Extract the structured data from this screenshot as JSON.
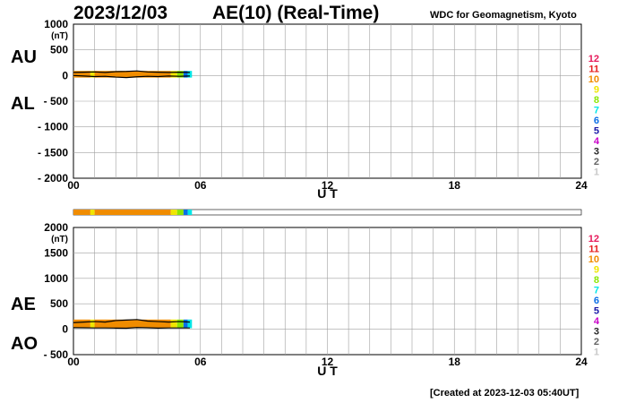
{
  "header": {
    "date": "2023/12/03",
    "title": "AE(10) (Real-Time)",
    "credit": "WDC for Geomagnetism, Kyoto"
  },
  "footer": "[Created at 2023-12-03 05:40UT]",
  "legend": {
    "labels": [
      "12",
      "11",
      "10",
      "9",
      "8",
      "7",
      "6",
      "5",
      "4",
      "3",
      "2",
      "1"
    ],
    "colors": [
      "#e6195a",
      "#e62020",
      "#f08c00",
      "#f0e600",
      "#8ce600",
      "#00e6e6",
      "#0a6ee6",
      "#1a1aa8",
      "#c800c8",
      "#282828",
      "#646464",
      "#c8c8c8"
    ]
  },
  "chart_data": [
    {
      "type": "line",
      "panel": "AU/AL",
      "series_labels": [
        "AU",
        "AL"
      ],
      "units": "(nT)",
      "xlabel": "U T",
      "xlim": [
        0,
        24
      ],
      "x_ticks": [
        "00",
        "06",
        "12",
        "18",
        "24"
      ],
      "ylim": [
        -2000,
        1000
      ],
      "y_ticks": [
        "1000",
        "500",
        "0",
        "- 500",
        "- 1000",
        "- 1500",
        "- 2000"
      ],
      "grid": true,
      "series": [
        {
          "name": "AU",
          "x": [
            0,
            0.5,
            1,
            1.5,
            2,
            2.5,
            3,
            3.5,
            4,
            4.5,
            5,
            5.5
          ],
          "y": [
            60,
            65,
            70,
            60,
            75,
            80,
            90,
            70,
            65,
            60,
            65,
            60
          ]
        },
        {
          "name": "AL",
          "x": [
            0,
            0.5,
            1,
            1.5,
            2,
            2.5,
            3,
            3.5,
            4,
            4.5,
            5,
            5.5
          ],
          "y": [
            0,
            -10,
            -20,
            -15,
            -30,
            -40,
            -25,
            -15,
            -20,
            -10,
            -15,
            -10
          ]
        }
      ]
    },
    {
      "type": "line",
      "panel": "AE/AO",
      "series_labels": [
        "AE",
        "AO"
      ],
      "units": "(nT)",
      "xlabel": "U T",
      "xlim": [
        0,
        24
      ],
      "x_ticks": [
        "00",
        "06",
        "12",
        "18",
        "24"
      ],
      "ylim": [
        -500,
        2000
      ],
      "y_ticks": [
        "2000",
        "1500",
        "1000",
        "500",
        "0",
        "- 500"
      ],
      "grid": true,
      "series": [
        {
          "name": "AE",
          "x": [
            0,
            0.5,
            1,
            1.5,
            2,
            2.5,
            3,
            3.5,
            4,
            4.5,
            5,
            5.5
          ],
          "y": [
            130,
            140,
            150,
            140,
            170,
            180,
            190,
            160,
            150,
            140,
            150,
            140
          ]
        },
        {
          "name": "AO",
          "x": [
            0,
            0.5,
            1,
            1.5,
            2,
            2.5,
            3,
            3.5,
            4,
            4.5,
            5,
            5.5
          ],
          "y": [
            30,
            28,
            25,
            25,
            22,
            20,
            32,
            28,
            22,
            25,
            25,
            25
          ]
        }
      ]
    }
  ],
  "station_count_strip": {
    "segments": [
      {
        "from": 0,
        "to": 0.8,
        "count": 10
      },
      {
        "from": 0.8,
        "to": 1.0,
        "count": 9
      },
      {
        "from": 1.0,
        "to": 4.6,
        "count": 10
      },
      {
        "from": 4.6,
        "to": 4.9,
        "count": 9
      },
      {
        "from": 4.9,
        "to": 5.2,
        "count": 8
      },
      {
        "from": 5.2,
        "to": 5.4,
        "count": 6
      },
      {
        "from": 5.4,
        "to": 5.6,
        "count": 7
      }
    ]
  }
}
